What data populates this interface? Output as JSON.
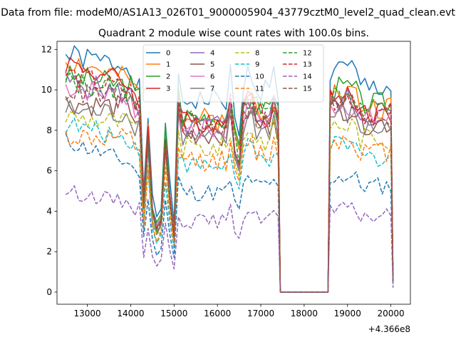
{
  "suptitle": "Data from file: modeM0/AS1A13_026T01_9000005904_43779cztM0_level2_quad_clean.evt",
  "chart_data": {
    "type": "line",
    "title": "Quadrant 2 module wise count rates with 100.0s bins.",
    "xlabel": "",
    "ylabel": "",
    "x_offset_label": "+4.366e8",
    "xlim": [
      12300,
      20450
    ],
    "ylim": [
      -0.6,
      12.4
    ],
    "xticks": [
      13000,
      14000,
      15000,
      16000,
      17000,
      18000,
      19000,
      20000
    ],
    "yticks": [
      0,
      2,
      4,
      6,
      8,
      10,
      12
    ],
    "grid": false,
    "legend": {
      "placement": "top-center",
      "columns": 4
    },
    "x_segments": [
      {
        "start": 12500,
        "end": 17400,
        "step": 100
      },
      {
        "start": 17450,
        "end": 18550,
        "step": 100
      },
      {
        "start": 18600,
        "end": 20000,
        "step": 100
      },
      {
        "start": 20050,
        "end": 20050,
        "step": 100
      }
    ],
    "x_gap": [
      17400,
      18600
    ],
    "series": [
      {
        "name": "0",
        "color": "#1f77b4",
        "dash": "solid",
        "level": 10.8,
        "start": 11.7,
        "scale": 1.0,
        "seed": 1
      },
      {
        "name": "1",
        "color": "#ff7f0e",
        "dash": "solid",
        "level": 9.7,
        "start": 11.5,
        "scale": 1.0,
        "seed": 2
      },
      {
        "name": "2",
        "color": "#2ca02c",
        "dash": "solid",
        "level": 9.9,
        "start": 10.7,
        "scale": 1.0,
        "seed": 3
      },
      {
        "name": "3",
        "color": "#d62728",
        "dash": "solid",
        "level": 9.5,
        "start": 11.4,
        "scale": 1.0,
        "seed": 4
      },
      {
        "name": "4",
        "color": "#9467bd",
        "dash": "solid",
        "level": 9.3,
        "start": 10.4,
        "scale": 1.0,
        "seed": 5
      },
      {
        "name": "5",
        "color": "#8c564b",
        "dash": "solid",
        "level": 8.9,
        "start": 9.4,
        "scale": 1.0,
        "seed": 6
      },
      {
        "name": "6",
        "color": "#e377c2",
        "dash": "solid",
        "level": 9.1,
        "start": 10.2,
        "scale": 1.0,
        "seed": 7
      },
      {
        "name": "7",
        "color": "#7f7f7f",
        "dash": "solid",
        "level": 8.6,
        "start": 9.0,
        "scale": 1.0,
        "seed": 8
      },
      {
        "name": "8",
        "color": "#bcbd22",
        "dash": "dashed",
        "level": 8.1,
        "start": 8.7,
        "scale": 0.95,
        "seed": 9
      },
      {
        "name": "9",
        "color": "#17becf",
        "dash": "dashed",
        "level": 7.1,
        "start": 8.3,
        "scale": 0.85,
        "seed": 10
      },
      {
        "name": "10",
        "color": "#1f77b4",
        "dash": "dashed",
        "level": 5.6,
        "start": 7.5,
        "scale": 0.75,
        "seed": 11
      },
      {
        "name": "11",
        "color": "#ff7f0e",
        "dash": "dashed",
        "level": 7.4,
        "start": 7.7,
        "scale": 0.9,
        "seed": 12
      },
      {
        "name": "12",
        "color": "#2ca02c",
        "dash": "dashed",
        "level": 9.6,
        "start": 10.4,
        "scale": 1.0,
        "seed": 13
      },
      {
        "name": "13",
        "color": "#d62728",
        "dash": "dashed",
        "level": 9.4,
        "start": 10.8,
        "scale": 1.0,
        "seed": 14
      },
      {
        "name": "14",
        "color": "#9467bd",
        "dash": "dashed",
        "level": 4.0,
        "start": 5.0,
        "scale": 0.6,
        "seed": 15
      },
      {
        "name": "15",
        "color": "#8c564b",
        "dash": "dashed",
        "level": 9.2,
        "start": 10.0,
        "scale": 1.0,
        "seed": 16
      }
    ],
    "dips": [
      {
        "x": 14300,
        "min_factor": 0.45
      },
      {
        "x": 14400,
        "min_factor": 0.8
      },
      {
        "x": 14500,
        "min_factor": 0.42
      },
      {
        "x": 14600,
        "min_factor": 0.33
      },
      {
        "x": 14700,
        "min_factor": 0.38
      },
      {
        "x": 14800,
        "min_factor": 0.8
      },
      {
        "x": 14900,
        "min_factor": 0.5
      },
      {
        "x": 15000,
        "min_factor": 0.3
      },
      {
        "x": 16400,
        "min_factor": 0.78
      },
      {
        "x": 16500,
        "min_factor": 0.7
      },
      {
        "x": 16600,
        "min_factor": 0.95
      },
      {
        "x": 20050,
        "min_factor": 0.06
      }
    ]
  }
}
